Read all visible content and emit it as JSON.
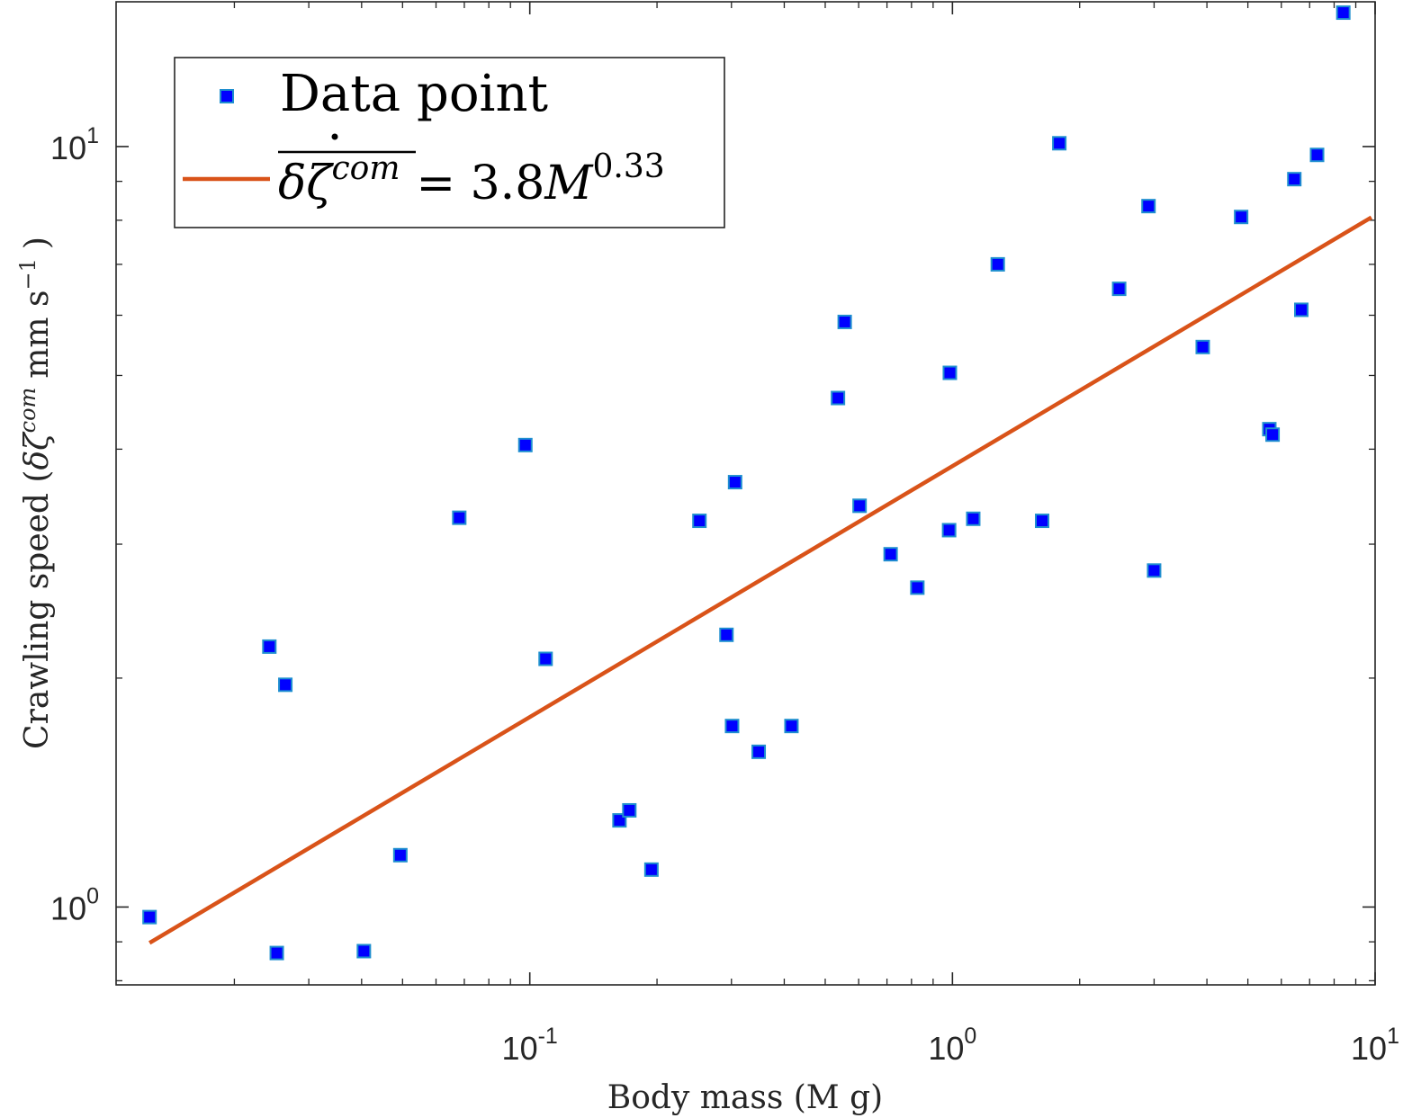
{
  "chart_data": {
    "type": "scatter",
    "title": "",
    "xlabel": "Body mass (M g)",
    "ylabel": "Crawling speed (δζ̇com mm s⁻¹ )",
    "ylabel_parts": {
      "lead": "Crawling speed (",
      "symbol": "δζ",
      "sup": "com",
      "unit": "mm s",
      "unit_exp": "−1",
      "close": ")"
    },
    "xscale": "log",
    "yscale": "log",
    "xlim": [
      0.0105,
      10
    ],
    "ylim": [
      0.79,
      15.5
    ],
    "x_ticks": [
      {
        "value": 0.1,
        "base": "10",
        "exp": "-1"
      },
      {
        "value": 1,
        "base": "10",
        "exp": "0"
      },
      {
        "value": 10,
        "base": "10",
        "exp": "1"
      }
    ],
    "y_ticks": [
      {
        "value": 1,
        "base": "10",
        "exp": "0"
      },
      {
        "value": 10,
        "base": "10",
        "exp": "1"
      }
    ],
    "legend": {
      "position": "top-left",
      "entries": [
        {
          "label": "Data point",
          "marker": "square"
        },
        {
          "label": "δζ̇com = 3.8M^0.33",
          "lhs": "δζ",
          "lhs_sup": "com",
          "rhs": "= 3.8",
          "rhs_var": "M",
          "rhs_exp": "0.33",
          "marker": "line"
        }
      ]
    },
    "colors": {
      "marker_fill": "#0000ff",
      "marker_edge": "#1f8fcf",
      "fit_line": "#d95319",
      "axes": "#262626"
    },
    "series": [
      {
        "name": "Data point",
        "kind": "scatter",
        "points": [
          [
            0.0126,
            0.97
          ],
          [
            0.0242,
            2.2
          ],
          [
            0.0252,
            0.87
          ],
          [
            0.0264,
            1.96
          ],
          [
            0.0405,
            0.875
          ],
          [
            0.0494,
            1.17
          ],
          [
            0.0681,
            3.25
          ],
          [
            0.0976,
            4.05
          ],
          [
            0.109,
            2.12
          ],
          [
            0.163,
            1.3
          ],
          [
            0.172,
            1.34
          ],
          [
            0.194,
            1.12
          ],
          [
            0.252,
            3.22
          ],
          [
            0.292,
            2.28
          ],
          [
            0.301,
            1.73
          ],
          [
            0.306,
            3.62
          ],
          [
            0.348,
            1.6
          ],
          [
            0.416,
            1.73
          ],
          [
            0.536,
            4.67
          ],
          [
            0.556,
            5.88
          ],
          [
            0.603,
            3.37
          ],
          [
            0.714,
            2.91
          ],
          [
            0.826,
            2.63
          ],
          [
            0.982,
            3.13
          ],
          [
            0.986,
            5.04
          ],
          [
            1.12,
            3.24
          ],
          [
            1.28,
            7.0
          ],
          [
            1.63,
            3.22
          ],
          [
            1.79,
            10.1
          ],
          [
            2.48,
            6.5
          ],
          [
            2.91,
            8.35
          ],
          [
            3.0,
            2.77
          ],
          [
            3.91,
            5.45
          ],
          [
            4.82,
            8.08
          ],
          [
            5.62,
            4.25
          ],
          [
            5.72,
            4.18
          ],
          [
            6.44,
            9.06
          ],
          [
            6.69,
            6.1
          ],
          [
            7.29,
            9.75
          ],
          [
            8.41,
            15.0
          ]
        ]
      },
      {
        "name": "δζ̇com = 3.8M^0.33",
        "kind": "line",
        "coefficient": 3.8,
        "exponent": 0.33,
        "x_range": [
          0.0126,
          9.8
        ]
      }
    ]
  }
}
